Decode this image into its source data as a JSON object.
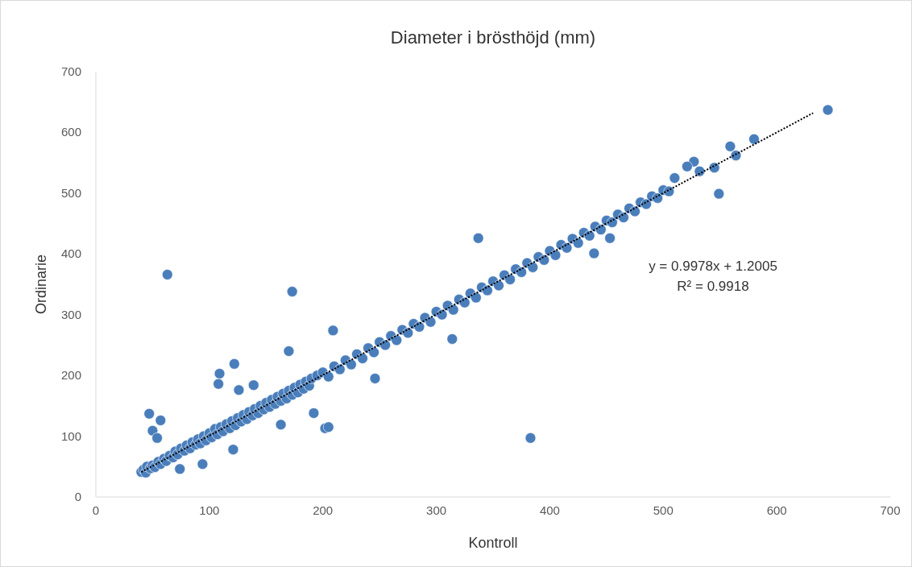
{
  "chart_data": {
    "type": "scatter",
    "title": "Diameter i brösthöjd (mm)",
    "xlabel": "Kontroll",
    "ylabel": "Ordinarie",
    "xlim": [
      0,
      700
    ],
    "ylim": [
      0,
      700
    ],
    "xticks": [
      0,
      100,
      200,
      300,
      400,
      500,
      600,
      700
    ],
    "yticks": [
      0,
      100,
      200,
      300,
      400,
      500,
      600,
      700
    ],
    "grid": false,
    "marker": "circle",
    "annotations": [
      "y = 0.9978x + 1.2005",
      "R² = 0.9918"
    ],
    "series": [
      {
        "color": "#4a7ebb",
        "x": [
          40,
          42,
          44,
          45,
          48,
          50,
          52,
          55,
          57,
          60,
          62,
          65,
          68,
          70,
          72,
          75,
          78,
          80,
          83,
          85,
          88,
          90,
          92,
          95,
          97,
          100,
          102,
          105,
          107,
          110,
          112,
          115,
          118,
          120,
          123,
          125,
          128,
          130,
          133,
          135,
          138,
          140,
          143,
          145,
          148,
          150,
          153,
          155,
          158,
          160,
          163,
          165,
          168,
          170,
          173,
          175,
          178,
          180,
          183,
          185,
          188,
          190,
          195,
          200,
          205,
          210,
          215,
          220,
          225,
          230,
          235,
          240,
          245,
          250,
          255,
          260,
          265,
          270,
          275,
          280,
          285,
          290,
          295,
          300,
          305,
          310,
          315,
          320,
          325,
          330,
          335,
          340,
          345,
          350,
          355,
          360,
          365,
          370,
          375,
          380,
          385,
          390,
          395,
          400,
          405,
          410,
          415,
          420,
          425,
          430,
          435,
          440,
          445,
          450,
          455,
          460,
          465,
          470,
          475,
          480,
          485,
          490,
          495,
          500,
          505,
          63,
          173,
          170,
          209,
          337,
          246,
          192,
          202,
          205,
          314,
          383,
          122,
          109,
          108,
          139,
          126,
          47,
          57,
          50,
          54,
          74,
          94,
          121,
          163,
          549,
          580,
          559,
          564,
          527,
          521,
          532,
          545,
          510,
          439,
          453,
          645
        ],
        "values": [
          41,
          45,
          40,
          50,
          47,
          52,
          49,
          58,
          54,
          63,
          59,
          68,
          65,
          75,
          70,
          80,
          76,
          85,
          80,
          90,
          86,
          95,
          88,
          100,
          93,
          105,
          98,
          112,
          103,
          115,
          108,
          120,
          113,
          125,
          118,
          130,
          124,
          135,
          128,
          140,
          134,
          145,
          138,
          150,
          144,
          155,
          148,
          160,
          153,
          165,
          158,
          170,
          162,
          175,
          168,
          180,
          172,
          185,
          178,
          190,
          183,
          195,
          200,
          205,
          198,
          215,
          210,
          225,
          218,
          235,
          228,
          245,
          238,
          255,
          250,
          265,
          258,
          275,
          270,
          285,
          280,
          295,
          288,
          305,
          300,
          315,
          308,
          325,
          320,
          335,
          328,
          345,
          340,
          355,
          348,
          365,
          358,
          375,
          370,
          385,
          378,
          395,
          390,
          405,
          398,
          415,
          410,
          425,
          418,
          435,
          430,
          445,
          440,
          455,
          452,
          465,
          460,
          475,
          470,
          485,
          482,
          495,
          492,
          505,
          503,
          366,
          338,
          240,
          274,
          426,
          195,
          138,
          113,
          115,
          260,
          97,
          219,
          203,
          186,
          184,
          176,
          137,
          126,
          109,
          97,
          46,
          54,
          78,
          119,
          499,
          589,
          577,
          562,
          552,
          544,
          536,
          542,
          525,
          401,
          426,
          637
        ]
      },
      {
        "type": "line",
        "color": "#000000",
        "line_style": "dotted",
        "marker": "none",
        "x": [
          40,
          632
        ],
        "values": [
          41,
          632
        ]
      }
    ]
  }
}
